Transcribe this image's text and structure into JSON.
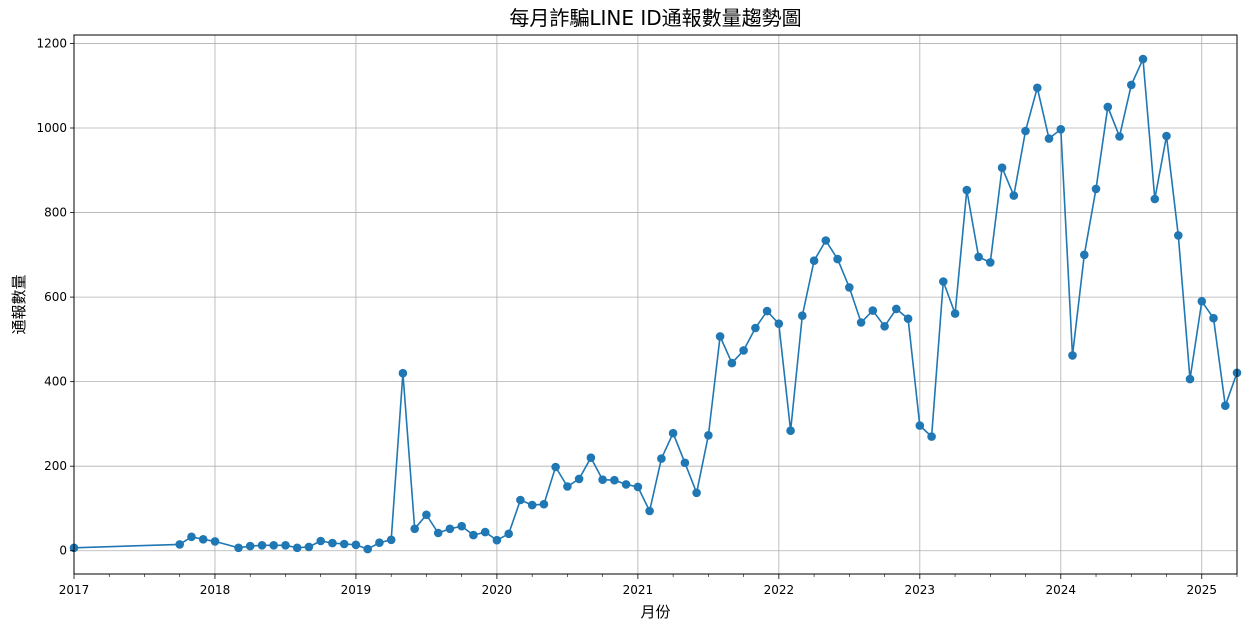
{
  "chart_data": {
    "type": "line",
    "title": "每月詐騙LINE ID通報數量趨勢圖",
    "xlabel": "月份",
    "ylabel": "通報數量",
    "grid": true,
    "line_color": "#1f77b4",
    "xlim": [
      "2017-01",
      "2025-04"
    ],
    "ylim": [
      -55,
      1220
    ],
    "x_ticks": [
      "2017",
      "2018",
      "2019",
      "2020",
      "2021",
      "2022",
      "2023",
      "2024",
      "2025"
    ],
    "y_ticks": [
      0,
      200,
      400,
      600,
      800,
      1000,
      1200
    ],
    "series": [
      {
        "x": [
          "2017-01",
          "2017-10",
          "2017-11",
          "2017-12",
          "2018-01",
          "2018-03",
          "2018-04",
          "2018-05",
          "2018-06",
          "2018-07",
          "2018-08",
          "2018-09",
          "2018-10",
          "2018-11",
          "2018-12",
          "2019-01",
          "2019-02",
          "2019-03",
          "2019-04",
          "2019-05",
          "2019-06",
          "2019-07",
          "2019-08",
          "2019-09",
          "2019-10",
          "2019-11",
          "2019-12",
          "2020-01",
          "2020-02",
          "2020-03",
          "2020-04",
          "2020-05",
          "2020-06",
          "2020-07",
          "2020-08",
          "2020-09",
          "2020-10",
          "2020-11",
          "2020-12",
          "2021-01",
          "2021-02",
          "2021-03",
          "2021-04",
          "2021-05",
          "2021-06",
          "2021-07",
          "2021-08",
          "2021-09",
          "2021-10",
          "2021-11",
          "2021-12",
          "2022-01",
          "2022-02",
          "2022-03",
          "2022-04",
          "2022-05",
          "2022-06",
          "2022-07",
          "2022-08",
          "2022-09",
          "2022-10",
          "2022-11",
          "2022-12",
          "2023-01",
          "2023-02",
          "2023-03",
          "2023-04",
          "2023-05",
          "2023-06",
          "2023-07",
          "2023-08",
          "2023-09",
          "2023-10",
          "2023-11",
          "2023-12",
          "2024-01",
          "2024-02",
          "2024-03",
          "2024-04",
          "2024-05",
          "2024-06",
          "2024-07",
          "2024-08",
          "2024-09",
          "2024-10",
          "2024-11",
          "2024-12",
          "2025-01",
          "2025-02",
          "2025-03",
          "2025-04"
        ],
        "y": [
          7,
          15,
          33,
          27,
          22,
          7,
          11,
          13,
          13,
          13,
          7,
          9,
          23,
          18,
          16,
          14,
          4,
          19,
          26,
          420,
          52,
          85,
          42,
          52,
          58,
          37,
          44,
          25,
          40,
          120,
          108,
          110,
          198,
          152,
          170,
          220,
          168,
          167,
          157,
          151,
          94,
          218,
          278,
          208,
          137,
          273,
          507,
          444,
          474,
          527,
          567,
          537,
          284,
          556,
          686,
          734,
          690,
          623,
          540,
          568,
          531,
          572,
          549,
          296,
          270,
          637,
          561,
          853,
          695,
          682,
          906,
          840,
          993,
          1095,
          975,
          997,
          462,
          700,
          856,
          1050,
          980,
          1102,
          1163,
          832,
          981,
          746,
          406,
          590,
          550,
          343,
          421
        ]
      }
    ]
  }
}
